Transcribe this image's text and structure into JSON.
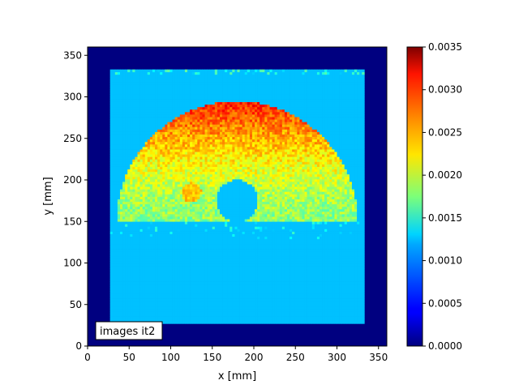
{
  "chart_data": {
    "type": "heatmap",
    "title": "",
    "xlabel": "x [mm]",
    "ylabel": "y [mm]",
    "xlim": [
      0,
      360
    ],
    "ylim": [
      0,
      360
    ],
    "x_ticks": [
      0,
      50,
      100,
      150,
      200,
      250,
      300,
      350
    ],
    "y_ticks": [
      0,
      50,
      100,
      150,
      200,
      250,
      300,
      350
    ],
    "annotation": "images it2",
    "colormap": "jet",
    "colorbar": {
      "min": 0.0,
      "max": 0.0035,
      "ticks": [
        "0.0000",
        "0.0005",
        "0.0010",
        "0.0015",
        "0.0020",
        "0.0025",
        "0.0030",
        "0.0035"
      ]
    },
    "background_value": 0.0,
    "field": {
      "region_x": [
        27,
        333
      ],
      "region_y": [
        27,
        333
      ],
      "base_value": 0.0011,
      "half_disk": {
        "center": [
          180,
          150
        ],
        "radius": 145,
        "y_min": 150,
        "inner_value": 0.0018,
        "top_value": 0.003
      },
      "hole": {
        "center": [
          180,
          175
        ],
        "radius": 25,
        "value": 0.0011
      },
      "hot_spot": {
        "center": [
          125,
          185
        ],
        "radius": 12,
        "value": 0.0024
      }
    }
  }
}
